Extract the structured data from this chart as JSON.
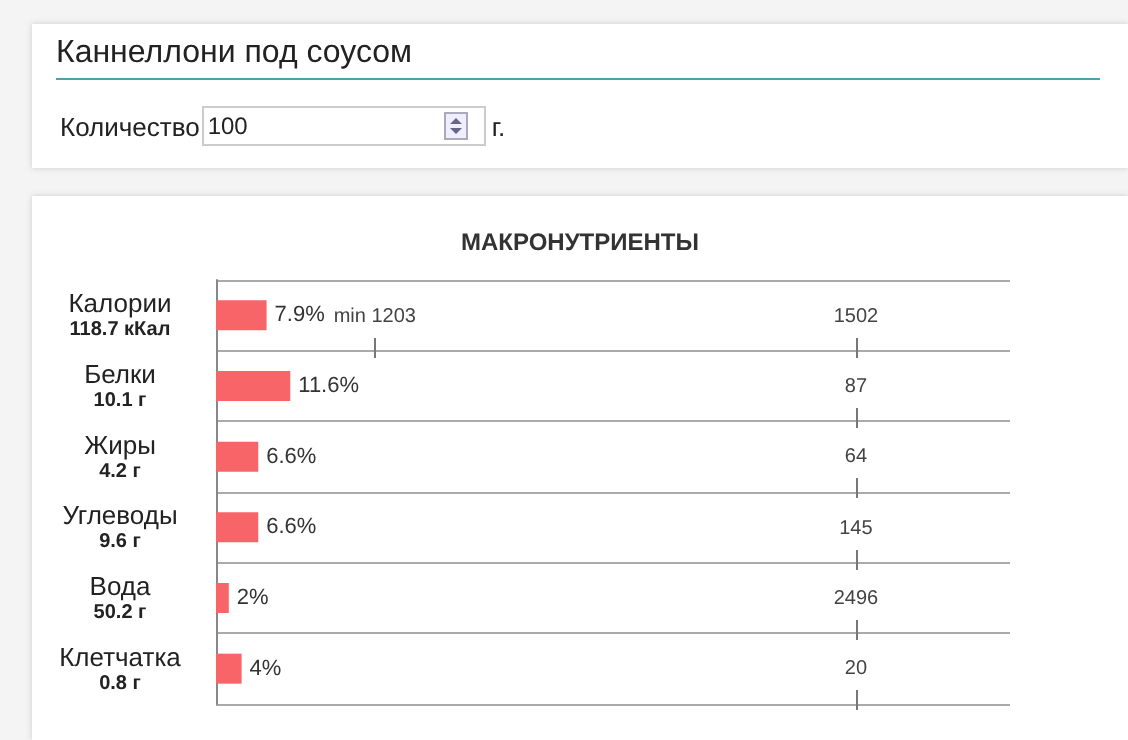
{
  "chart_data": {
    "type": "bar",
    "orientation": "horizontal",
    "title": "Каннеллони под соусом",
    "subtitle": "МАКРОНУТРИЕНТЫ",
    "categories": [
      "Калории\n118.7 кКал",
      "Белки\n10.1 г",
      "Жиры\n4.2 г",
      "Углеводы\n9.6 г",
      "Вода\n50.2 г",
      "Клетчатка\n0.8 г"
    ],
    "values": [
      7.9,
      11.6,
      6.6,
      6.6,
      2,
      4
    ],
    "value_labels": [
      "7.9%",
      "11.6%",
      "6.6%",
      "6.6%",
      "2%",
      "4%"
    ],
    "color": "#f76569",
    "xlim": [
      0,
      124
    ],
    "tick_labels": "y",
    "grid": "y",
    "annotations": [
      "Количество",
      "100",
      "г.",
      "min 1203",
      "1502",
      "87",
      "64",
      "145",
      "2496",
      "20"
    ]
  }
}
